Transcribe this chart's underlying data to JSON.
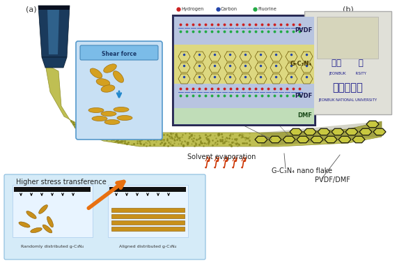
{
  "fig_width": 5.7,
  "fig_height": 3.77,
  "dpi": 100,
  "bg_color": "#ffffff",
  "label_a": "(a)",
  "label_b": "(b)",
  "annotation_fontsize": 7,
  "small_fontsize": 6,
  "nozzle_color": "#1a3a5c",
  "nozzle_highlight": "#4488bb",
  "flake_color": "#d4a020",
  "flake_edge": "#a07010",
  "arrow_orange": "#e87010",
  "text_solvent": "Solvent evaporation",
  "text_shear": "Shear force",
  "text_pvdf1": "PVDF",
  "text_gcn1": "G-C₃N₄",
  "text_pvdf2": "PVDF",
  "text_dmf": "DMF",
  "text_gcn_nano": "G-C₃N₄ nano flake",
  "text_pvdf_dmf": "PVDF/DMF",
  "text_higher": "Higher stress transference",
  "text_random": "Randomly distributed g-C₃N₄",
  "text_aligned": "Aligned distributed g-C₃N₄",
  "text_hydrogen": "Hydrogen",
  "text_carbon": "Carbon",
  "text_fluorine": "Fluorine",
  "legend_h_color": "#cc2020",
  "legend_c_color": "#2244aa",
  "legend_f_color": "#22aa44"
}
